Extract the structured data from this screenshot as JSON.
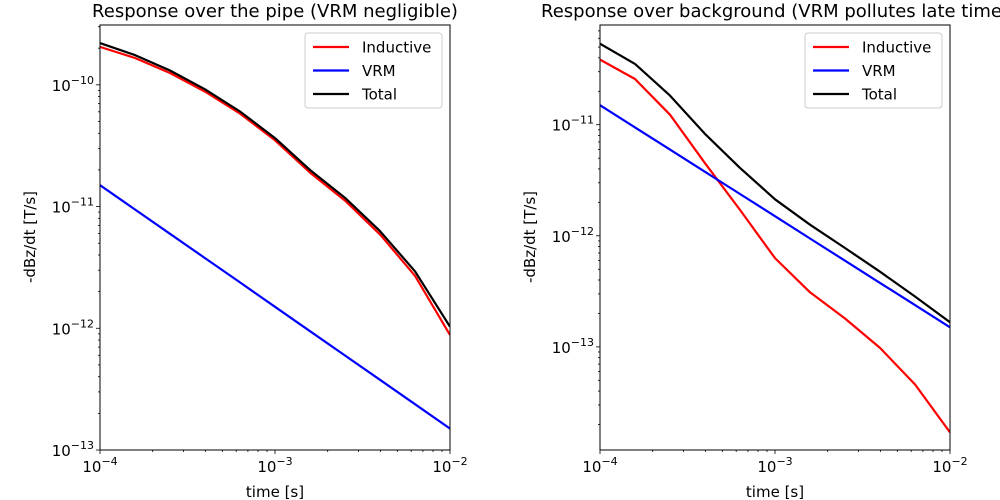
{
  "chart_data": [
    {
      "type": "line",
      "title": "Response over the pipe (VRM negligible)",
      "xlabel": "time [s]",
      "ylabel": "-dBz/dt [T/s]",
      "xscale": "log",
      "yscale": "log",
      "xlim": [
        0.0001,
        0.01
      ],
      "ylim": [
        1e-13,
        3.1e-10
      ],
      "xticks": [
        {
          "value": 0.0001,
          "label": "10^-4"
        },
        {
          "value": 0.001,
          "label": "10^-3"
        },
        {
          "value": 0.01,
          "label": "10^-2"
        }
      ],
      "yticks": [
        {
          "value": 1e-13,
          "label": "10^-13"
        },
        {
          "value": 1e-12,
          "label": "10^-12"
        },
        {
          "value": 1e-11,
          "label": "10^-11"
        },
        {
          "value": 1e-10,
          "label": "10^-10"
        }
      ],
      "legend": "top-right",
      "x": [
        0.0001,
        0.0001585,
        0.0002512,
        0.0003981,
        0.000631,
        0.001,
        0.001585,
        0.002512,
        0.003981,
        0.00631,
        0.01
      ],
      "series": [
        {
          "name": "Inductive",
          "color": "#ff0000",
          "values": [
            2.05e-10,
            1.66e-10,
            1.25e-10,
            8.8e-11,
            5.8e-11,
            3.5e-11,
            1.9e-11,
            1.12e-11,
            5.9e-12,
            2.7e-12,
            8.8e-13
          ]
        },
        {
          "name": "VRM",
          "color": "#0000ff",
          "values": [
            1.5e-11,
            9.46e-12,
            5.97e-12,
            3.77e-12,
            2.38e-12,
            1.5e-12,
            9.46e-13,
            5.97e-13,
            3.77e-13,
            2.38e-13,
            1.5e-13
          ]
        },
        {
          "name": "Total",
          "color": "#000000",
          "values": [
            2.2e-10,
            1.754e-10,
            1.31e-10,
            9.18e-11,
            6.04e-11,
            3.65e-11,
            1.995e-11,
            1.18e-11,
            6.28e-12,
            2.94e-12,
            1.03e-12
          ]
        }
      ]
    },
    {
      "type": "line",
      "title": "Response over background (VRM pollutes late time)",
      "xlabel": "time [s]",
      "ylabel": "-dBz/dt [T/s]",
      "xscale": "log",
      "yscale": "log",
      "xlim": [
        0.0001,
        0.01
      ],
      "ylim": [
        1.18e-14,
        7.9e-11
      ],
      "xticks": [
        {
          "value": 0.0001,
          "label": "10^-4"
        },
        {
          "value": 0.001,
          "label": "10^-3"
        },
        {
          "value": 0.01,
          "label": "10^-2"
        }
      ],
      "yticks": [
        {
          "value": 1e-13,
          "label": "10^-13"
        },
        {
          "value": 1e-12,
          "label": "10^-12"
        },
        {
          "value": 1e-11,
          "label": "10^-11"
        }
      ],
      "legend": "top-right",
      "x": [
        0.0001,
        0.0001585,
        0.0002512,
        0.0003981,
        0.000631,
        0.001,
        0.001585,
        0.002512,
        0.003981,
        0.00631,
        0.01
      ],
      "series": [
        {
          "name": "Inductive",
          "color": "#ff0000",
          "values": [
            3.86e-11,
            2.58e-11,
            1.23e-11,
            4.5e-12,
            1.71e-12,
            6.3e-13,
            3.1e-13,
            1.8e-13,
            9.8e-14,
            4.6e-14,
            1.7e-14
          ]
        },
        {
          "name": "VRM",
          "color": "#0000ff",
          "values": [
            1.5e-11,
            9.46e-12,
            5.97e-12,
            3.77e-12,
            2.38e-12,
            1.5e-12,
            9.46e-13,
            5.97e-13,
            3.77e-13,
            2.38e-13,
            1.5e-13
          ]
        },
        {
          "name": "Total",
          "color": "#000000",
          "values": [
            5.36e-11,
            3.53e-11,
            1.83e-11,
            8.27e-12,
            4.09e-12,
            2.13e-12,
            1.26e-12,
            7.77e-13,
            4.75e-13,
            2.84e-13,
            1.67e-13
          ]
        }
      ]
    }
  ]
}
